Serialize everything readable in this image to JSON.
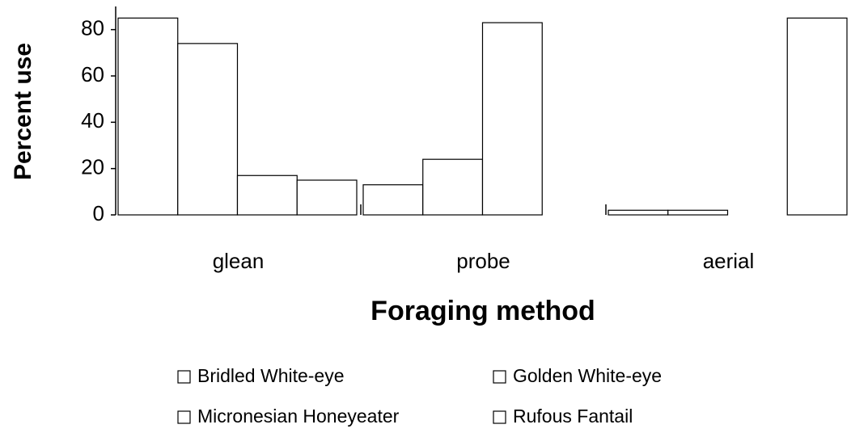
{
  "chart_data": {
    "type": "bar",
    "xlabel": "Foraging method",
    "ylabel": "Percent use",
    "categories": [
      "glean",
      "probe",
      "aerial"
    ],
    "series": [
      {
        "name": "Bridled White-eye",
        "color": "#ffffff",
        "values": [
          85,
          13,
          2
        ]
      },
      {
        "name": "Golden White-eye",
        "color": "#ffffff",
        "values": [
          74,
          24,
          2
        ]
      },
      {
        "name": "Micronesian Honeyeater",
        "color": "#ffffff",
        "values": [
          17,
          83,
          0
        ]
      },
      {
        "name": "Rufous Fantail",
        "color": "#ffffff",
        "values": [
          15,
          0,
          85
        ]
      }
    ],
    "ylim": [
      0,
      90
    ],
    "yticks": [
      0,
      20,
      40,
      60,
      80
    ],
    "legend": "bottom"
  }
}
